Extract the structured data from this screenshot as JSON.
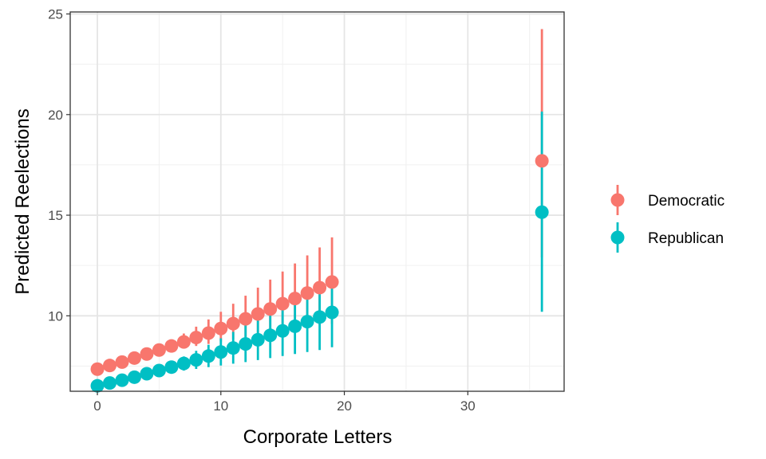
{
  "chart_data": {
    "type": "scatter",
    "title": "",
    "xlabel": "Corporate Letters",
    "ylabel": "Predicted Reelections",
    "xlim": [
      -2.2,
      37.8
    ],
    "ylim": [
      6.25,
      25.1
    ],
    "x_ticks": [
      0,
      10,
      20,
      30
    ],
    "x_minor": [
      5,
      15,
      25,
      35
    ],
    "y_ticks": [
      10,
      15,
      20,
      25
    ],
    "y_minor": [
      7.5,
      12.5,
      17.5,
      22.5
    ],
    "x_tick_labels": [
      "0",
      "10",
      "20",
      "30"
    ],
    "y_tick_labels": [
      "10",
      "15",
      "20",
      "25"
    ],
    "grid": true,
    "legend_position": "right",
    "series": [
      {
        "name": "Democratic",
        "color": "#F8766D",
        "x": [
          0,
          1,
          2,
          3,
          4,
          5,
          6,
          7,
          8,
          9,
          10,
          11,
          12,
          13,
          14,
          15,
          16,
          17,
          18,
          19,
          36
        ],
        "y": [
          7.35,
          7.53,
          7.7,
          7.9,
          8.1,
          8.3,
          8.5,
          8.7,
          8.92,
          9.14,
          9.37,
          9.61,
          9.85,
          10.09,
          10.34,
          10.6,
          10.86,
          11.13,
          11.4,
          11.68,
          17.7
        ],
        "lower": [
          7.3,
          7.5,
          7.66,
          7.84,
          8.02,
          8.18,
          8.3,
          8.4,
          8.5,
          8.6,
          8.72,
          8.84,
          8.96,
          9.07,
          9.2,
          9.3,
          9.4,
          9.5,
          9.55,
          9.6,
          12.9
        ],
        "upper": [
          7.5,
          7.64,
          7.8,
          8.0,
          8.24,
          8.5,
          8.8,
          9.12,
          9.46,
          9.82,
          10.2,
          10.6,
          11.0,
          11.4,
          11.8,
          12.2,
          12.6,
          13.0,
          13.4,
          13.9,
          24.25
        ]
      },
      {
        "name": "Republican",
        "color": "#00BFC4",
        "x": [
          0,
          1,
          2,
          3,
          4,
          5,
          6,
          7,
          8,
          9,
          10,
          11,
          12,
          13,
          14,
          15,
          16,
          17,
          18,
          19,
          36
        ],
        "y": [
          6.52,
          6.66,
          6.8,
          6.95,
          7.12,
          7.28,
          7.45,
          7.63,
          7.81,
          8.0,
          8.2,
          8.4,
          8.6,
          8.81,
          9.03,
          9.25,
          9.48,
          9.71,
          9.94,
          10.17,
          15.15
        ],
        "lower": [
          6.5,
          6.62,
          6.75,
          6.87,
          7.0,
          7.1,
          7.2,
          7.28,
          7.36,
          7.45,
          7.53,
          7.62,
          7.7,
          7.8,
          7.9,
          8.0,
          8.1,
          8.2,
          8.3,
          8.44,
          10.2
        ],
        "upper": [
          6.56,
          6.7,
          6.86,
          7.04,
          7.24,
          7.46,
          7.7,
          7.98,
          8.26,
          8.56,
          8.88,
          9.2,
          9.53,
          9.86,
          10.2,
          10.55,
          10.9,
          11.25,
          11.58,
          11.95,
          20.15
        ]
      }
    ]
  }
}
